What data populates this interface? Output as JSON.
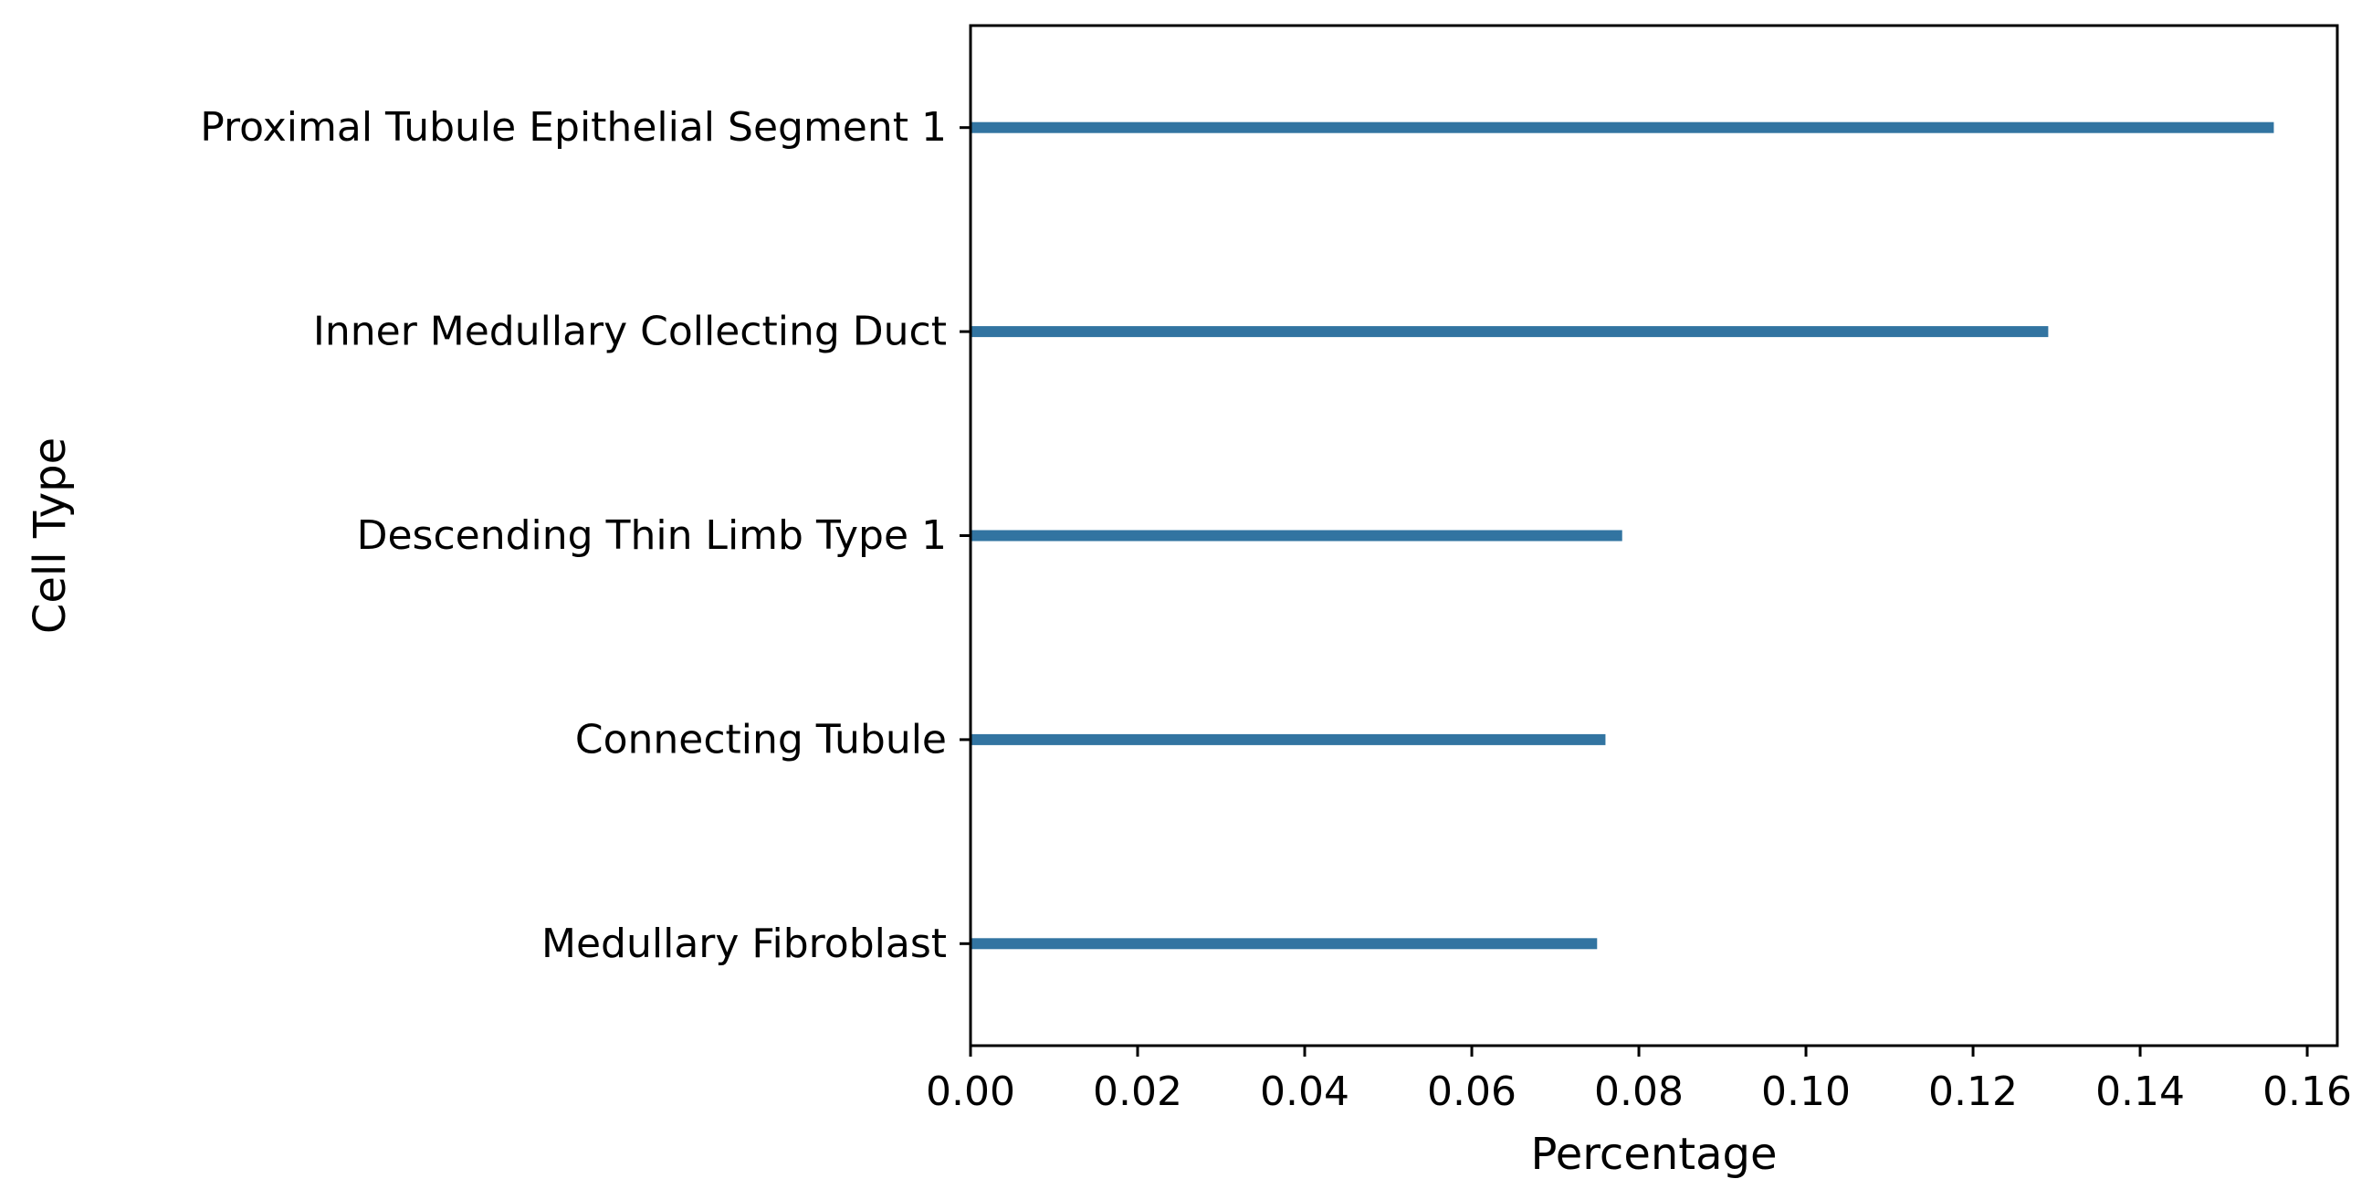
{
  "chart_data": {
    "type": "bar",
    "orientation": "horizontal",
    "categories": [
      "Proximal Tubule Epithelial Segment 1",
      "Inner Medullary Collecting Duct",
      "Descending Thin Limb Type 1",
      "Connecting Tubule",
      "Medullary Fibroblast"
    ],
    "values": [
      0.156,
      0.129,
      0.078,
      0.076,
      0.075
    ],
    "xlabel": "Percentage",
    "ylabel": "Cell Type",
    "xlim": [
      0.0,
      0.1636
    ],
    "xticks": [
      "0.00",
      "0.02",
      "0.04",
      "0.06",
      "0.08",
      "0.10",
      "0.12",
      "0.14",
      "0.16"
    ],
    "grid": false,
    "legend": "none",
    "bar_color": "#3274a1"
  }
}
